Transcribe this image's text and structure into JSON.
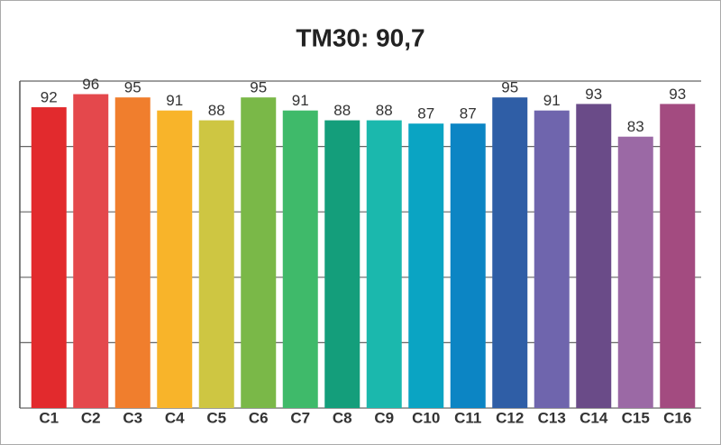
{
  "chart_data": {
    "type": "bar",
    "title": "TM30: 90,7",
    "categories": [
      "C1",
      "C2",
      "C3",
      "C4",
      "C5",
      "C6",
      "C7",
      "C8",
      "C9",
      "C10",
      "C11",
      "C12",
      "C13",
      "C14",
      "C15",
      "C16"
    ],
    "values": [
      92,
      96,
      95,
      91,
      88,
      95,
      91,
      88,
      88,
      87,
      87,
      95,
      91,
      93,
      83,
      93
    ],
    "colors": [
      "#e22a2d",
      "#e4484c",
      "#f07e2d",
      "#f8b42a",
      "#cec642",
      "#7ab848",
      "#3fba6a",
      "#149e7b",
      "#1bb8ad",
      "#0aa4c3",
      "#0c85c4",
      "#2f5ea6",
      "#6f65ad",
      "#6a4b88",
      "#9b69a5",
      "#a34b80"
    ],
    "ylim": [
      0,
      100
    ],
    "yticks": [
      0,
      20,
      40,
      60,
      80,
      100
    ],
    "ytick_labels": false,
    "grid": true
  }
}
